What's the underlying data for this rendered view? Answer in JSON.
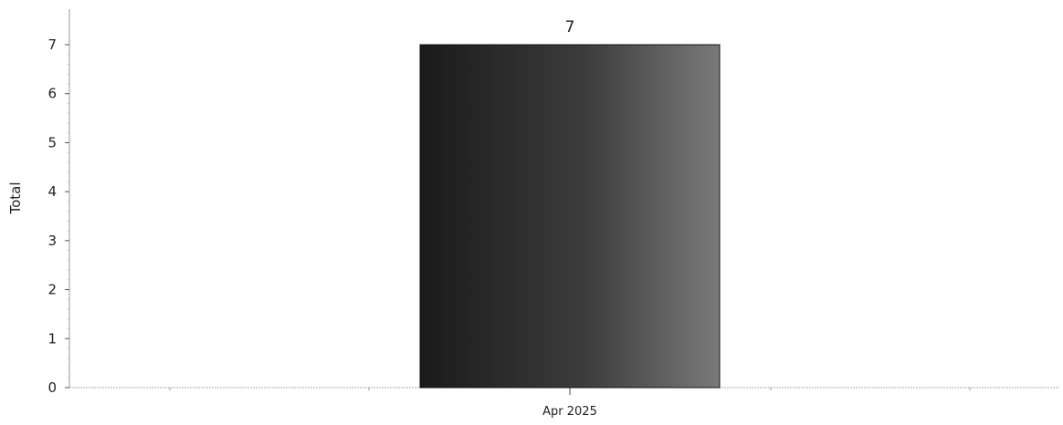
{
  "chart_data": {
    "type": "bar",
    "categories": [
      "Apr 2025"
    ],
    "values": [
      7
    ],
    "title": "",
    "xlabel": "",
    "ylabel": "Total",
    "ylim": [
      0,
      7
    ],
    "yticks": [
      0,
      1,
      2,
      3,
      4,
      5,
      6,
      7
    ],
    "data_labels": [
      "7"
    ],
    "grid": false,
    "legend": "none",
    "colors": {
      "bar_dark": "#1a1a1a",
      "bar_light": "#7a7a7a",
      "axis": "#999999"
    }
  }
}
